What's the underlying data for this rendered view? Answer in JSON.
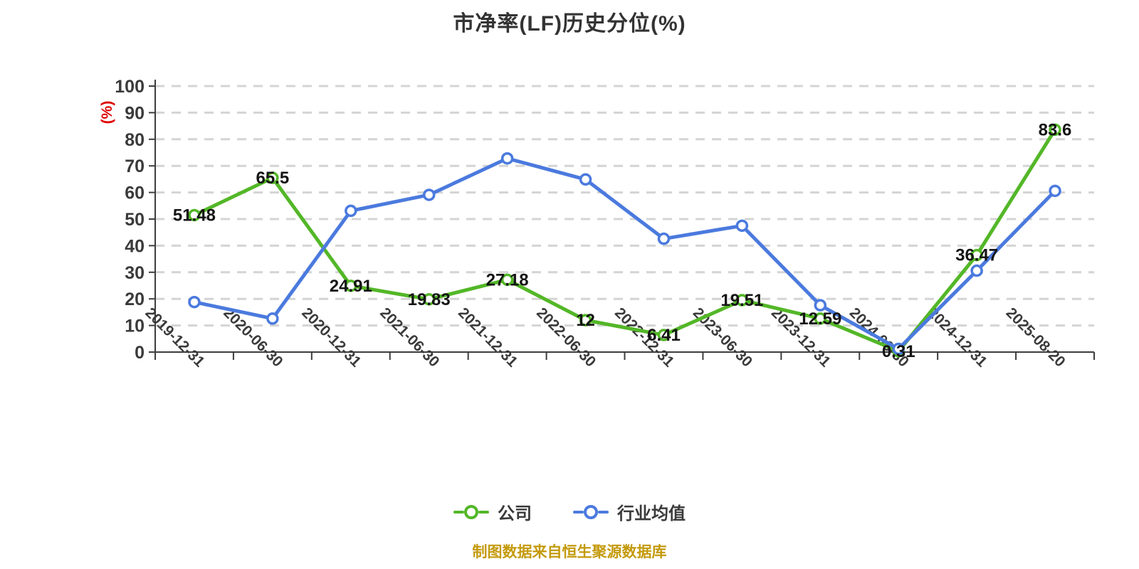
{
  "title": "市净率(LF)历史分位(%)",
  "y_axis_name": "(%)",
  "footer_note": "制图数据来自恒生聚源数据库",
  "legend": [
    {
      "label": "公司",
      "color": "#53b727"
    },
    {
      "label": "行业均值",
      "color": "#4b7ade"
    }
  ],
  "colors": {
    "company_line": "#53b727",
    "industry_line": "#4b7ade",
    "marker_fill": "#ffffff",
    "gridline": "#d4d4d4",
    "axis": "#3d3d3d",
    "axis_label": "#3a3a3a",
    "data_label": "#141414",
    "y_axis_name_color": "#dd0000",
    "title_color": "#333333",
    "footer_color": "#c49a0c"
  },
  "chart_data": {
    "type": "line",
    "title": "市净率(LF)历史分位(%)",
    "ylabel": "(%)",
    "ylim": [
      0,
      100
    ],
    "y_ticks": [
      0,
      10,
      20,
      30,
      40,
      50,
      60,
      70,
      80,
      90,
      100
    ],
    "grid": "horizontal-dashed",
    "legend_position": "bottom",
    "categories": [
      "2019-12-31",
      "2020-06-30",
      "2020-12-31",
      "2021-06-30",
      "2021-12-31",
      "2022-06-30",
      "2022-12-31",
      "2023-06-30",
      "2023-12-31",
      "2024-06-30",
      "2024-12-31",
      "2025-08-20"
    ],
    "series": [
      {
        "name": "公司",
        "color": "#53b727",
        "values": [
          51.48,
          65.5,
          24.91,
          19.83,
          27.18,
          12,
          6.41,
          19.51,
          12.59,
          0.31,
          36.47,
          83.6
        ],
        "labels": [
          "51.48",
          "65.5",
          "24.91",
          "19.83",
          "27.18",
          "12",
          "6.41",
          "19.51",
          "12.59",
          "0.31",
          "36.47",
          "83.6"
        ],
        "show_labels": true
      },
      {
        "name": "行业均值",
        "color": "#4b7ade",
        "values": [
          18.8,
          12.6,
          53.1,
          59.1,
          72.8,
          64.9,
          42.6,
          47.5,
          17.6,
          1.2,
          30.6,
          60.6
        ],
        "labels": [],
        "show_labels": false
      }
    ]
  }
}
